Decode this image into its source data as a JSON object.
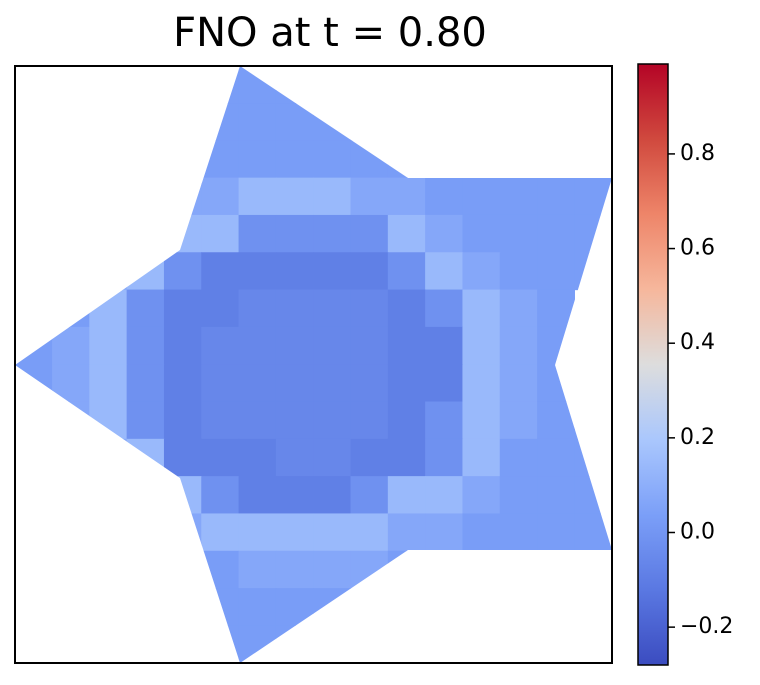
{
  "chart_data": {
    "type": "heatmap",
    "title": "FNO at t = 0.80",
    "colormap": "coolwarm",
    "clim": [
      -0.28,
      0.99
    ],
    "cticks": [
      {
        "value": -0.2,
        "label": "−0.2"
      },
      {
        "value": 0,
        "label": "0.0"
      },
      0.2,
      0.4,
      0.6,
      0.8
    ],
    "z": [
      [
        null,
        null,
        null,
        null,
        null,
        0.03,
        0.03,
        0.03,
        null,
        null,
        null,
        null,
        null,
        null,
        null,
        null
      ],
      [
        null,
        null,
        null,
        null,
        null,
        0.03,
        0.03,
        0.03,
        0.03,
        0.03,
        null,
        null,
        null,
        null,
        null,
        null
      ],
      [
        null,
        null,
        null,
        null,
        null,
        0.03,
        0.03,
        0.03,
        0.03,
        0.03,
        0.03,
        null,
        null,
        null,
        null,
        null
      ],
      [
        null,
        null,
        null,
        null,
        0.07,
        0.07,
        0.14,
        0.14,
        0.14,
        0.07,
        0.07,
        0.03,
        0.03,
        0.03,
        0.03,
        0.03
      ],
      [
        null,
        null,
        null,
        null,
        0.14,
        0.14,
        -0.02,
        -0.02,
        -0.02,
        -0.02,
        0.14,
        0.07,
        0.03,
        0.03,
        0.03,
        0.03
      ],
      [
        null,
        null,
        0.07,
        0.14,
        -0.02,
        -0.09,
        -0.09,
        -0.09,
        -0.09,
        -0.09,
        -0.02,
        0.14,
        0.07,
        0.03,
        0.03,
        0.03
      ],
      [
        null,
        0.03,
        0.14,
        -0.02,
        -0.09,
        -0.09,
        -0.06,
        -0.06,
        -0.06,
        -0.06,
        -0.09,
        -0.02,
        0.14,
        0.07,
        0.03,
        null
      ],
      [
        0.03,
        0.07,
        0.14,
        -0.02,
        -0.09,
        -0.06,
        -0.06,
        -0.06,
        -0.06,
        -0.06,
        -0.09,
        -0.09,
        0.14,
        0.07,
        0.03,
        null
      ],
      [
        0.03,
        0.07,
        0.14,
        -0.02,
        -0.09,
        -0.06,
        -0.06,
        -0.06,
        -0.06,
        -0.06,
        -0.09,
        -0.09,
        0.14,
        0.07,
        0.03,
        null
      ],
      [
        null,
        0.07,
        0.14,
        -0.02,
        -0.09,
        -0.06,
        -0.06,
        -0.06,
        -0.06,
        -0.06,
        -0.09,
        -0.02,
        0.14,
        0.07,
        0.03,
        0.03
      ],
      [
        null,
        null,
        0.07,
        0.14,
        -0.09,
        -0.09,
        -0.09,
        -0.06,
        -0.06,
        -0.09,
        -0.09,
        -0.02,
        0.14,
        0.03,
        0.03,
        0.03
      ],
      [
        null,
        null,
        null,
        null,
        0.14,
        -0.02,
        -0.09,
        -0.09,
        -0.09,
        -0.02,
        0.14,
        0.14,
        0.07,
        0.03,
        0.03,
        0.03
      ],
      [
        null,
        null,
        null,
        null,
        0.07,
        0.14,
        0.14,
        0.14,
        0.14,
        0.14,
        0.07,
        0.07,
        0.03,
        0.03,
        0.03,
        0.03
      ],
      [
        null,
        null,
        null,
        null,
        null,
        0.03,
        0.07,
        0.07,
        0.07,
        0.07,
        0.03,
        null,
        null,
        null,
        null,
        null
      ],
      [
        null,
        null,
        null,
        null,
        null,
        0.03,
        0.03,
        0.03,
        0.03,
        null,
        null,
        null,
        null,
        null,
        null,
        null
      ],
      [
        null,
        null,
        null,
        null,
        null,
        0.03,
        0.03,
        0.03,
        null,
        null,
        null,
        null,
        null,
        null,
        null,
        null
      ]
    ]
  }
}
